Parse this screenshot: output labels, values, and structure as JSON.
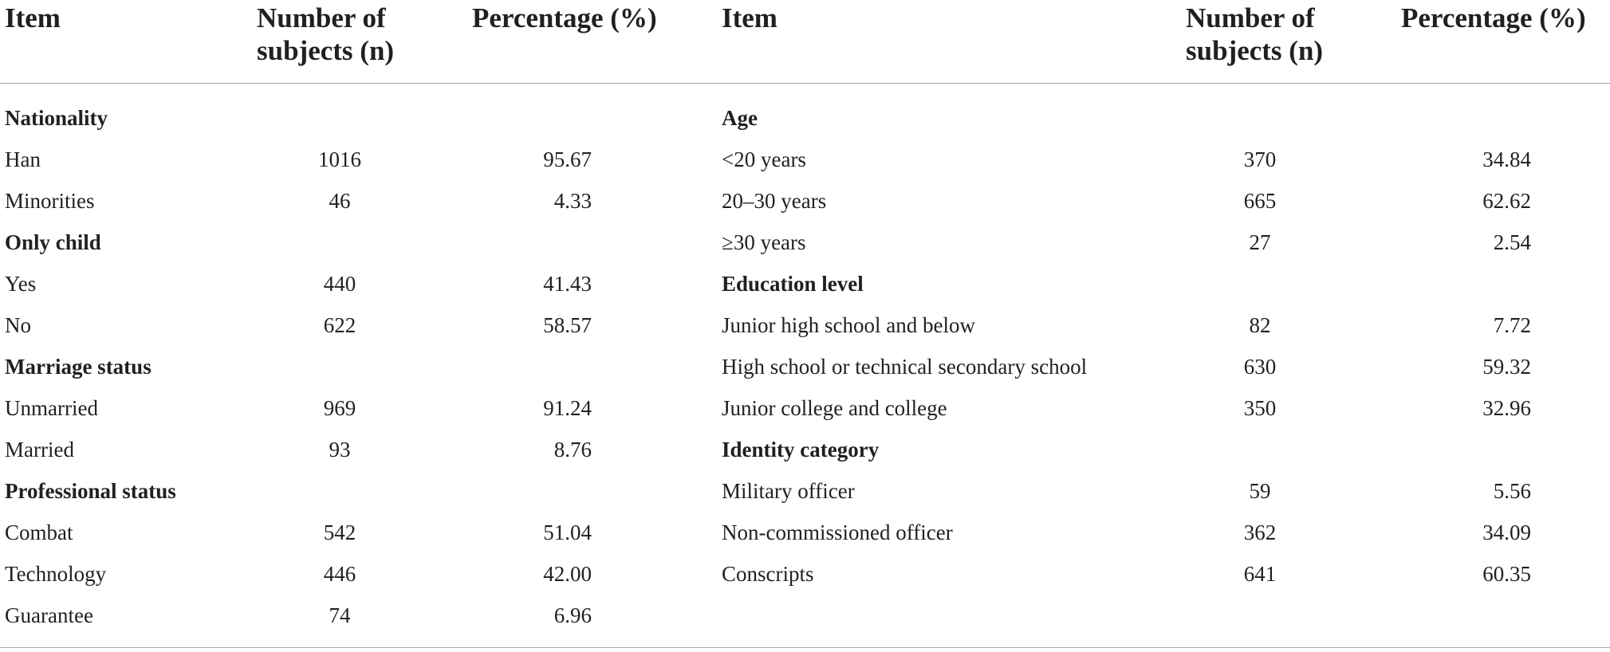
{
  "headers": {
    "item": "Item",
    "number_line1": "Number of",
    "number_line2": "subjects (n)",
    "percentage": "Percentage (%)"
  },
  "left_rows": [
    {
      "type": "section",
      "label": "Nationality"
    },
    {
      "type": "row",
      "label": "Han",
      "n": "1016",
      "pct": "95.67"
    },
    {
      "type": "row",
      "label": "Minorities",
      "n": "46",
      "pct": "4.33"
    },
    {
      "type": "section",
      "label": "Only child"
    },
    {
      "type": "row",
      "label": "Yes",
      "n": "440",
      "pct": "41.43"
    },
    {
      "type": "row",
      "label": "No",
      "n": "622",
      "pct": "58.57"
    },
    {
      "type": "section",
      "label": "Marriage status"
    },
    {
      "type": "row",
      "label": "Unmarried",
      "n": "969",
      "pct": "91.24"
    },
    {
      "type": "row",
      "label": "Married",
      "n": "93",
      "pct": "8.76"
    },
    {
      "type": "section",
      "label": "Professional status"
    },
    {
      "type": "row",
      "label": "Combat",
      "n": "542",
      "pct": "51.04"
    },
    {
      "type": "row",
      "label": "Technology",
      "n": "446",
      "pct": "42.00"
    },
    {
      "type": "row",
      "label": "Guarantee",
      "n": "74",
      "pct": "6.96"
    }
  ],
  "right_rows": [
    {
      "type": "section",
      "label": "Age"
    },
    {
      "type": "row",
      "label": "<20 years",
      "n": "370",
      "pct": "34.84"
    },
    {
      "type": "row",
      "label": "20–30 years",
      "n": "665",
      "pct": "62.62"
    },
    {
      "type": "row",
      "label": "≥30 years",
      "n": "27",
      "pct": "2.54"
    },
    {
      "type": "section",
      "label": "Education level"
    },
    {
      "type": "row",
      "label": "Junior high school and below",
      "n": "82",
      "pct": "7.72"
    },
    {
      "type": "row",
      "label": "High school or technical secondary school",
      "n": "630",
      "pct": "59.32"
    },
    {
      "type": "row",
      "label": "Junior college and college",
      "n": "350",
      "pct": "32.96"
    },
    {
      "type": "section",
      "label": "Identity category"
    },
    {
      "type": "row",
      "label": "Military officer",
      "n": "59",
      "pct": "5.56"
    },
    {
      "type": "row",
      "label": "Non-commissioned officer",
      "n": "362",
      "pct": "34.09"
    },
    {
      "type": "row",
      "label": "Conscripts",
      "n": "641",
      "pct": "60.35"
    }
  ]
}
